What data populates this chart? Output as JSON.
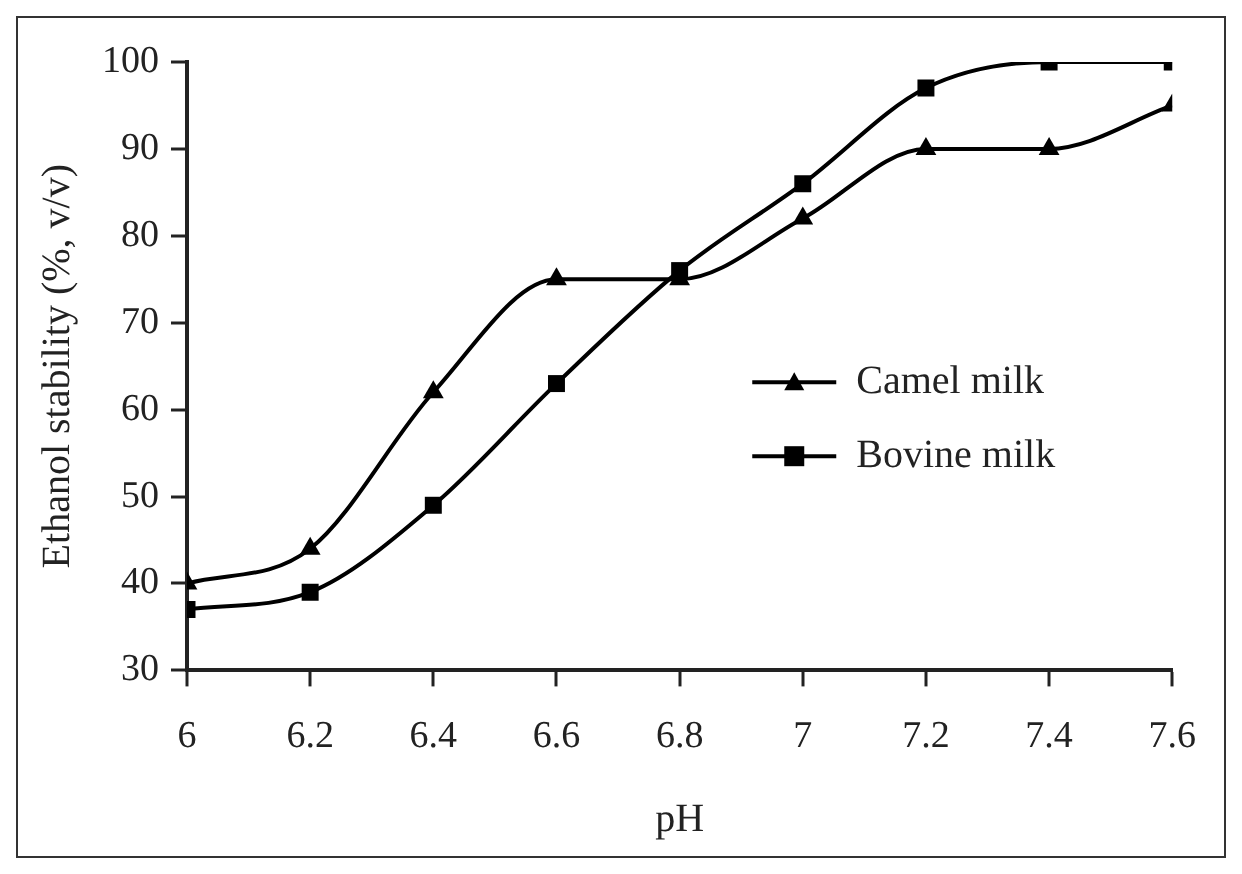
{
  "chart_data": {
    "type": "line",
    "xlabel": "pH",
    "ylabel": "Ethanol stability (%, v/v)",
    "x": [
      6,
      6.2,
      6.4,
      6.6,
      6.8,
      7,
      7.2,
      7.4,
      7.6
    ],
    "series": [
      {
        "name": "Camel milk",
        "color": "#000000",
        "marker": "triangle",
        "values": [
          40,
          44,
          62,
          75,
          75,
          82,
          90,
          90,
          95
        ]
      },
      {
        "name": "Bovine milk",
        "color": "#000000",
        "marker": "square",
        "values": [
          37,
          39,
          49,
          63,
          76,
          86,
          97,
          100,
          100
        ]
      }
    ],
    "xlim": [
      6,
      7.6
    ],
    "xticks": [
      6,
      6.2,
      6.4,
      6.6,
      6.8,
      7,
      7.2,
      7.4,
      7.6
    ],
    "ylim": [
      30,
      100
    ],
    "yticks": [
      30,
      40,
      50,
      60,
      70,
      80,
      90,
      100
    ],
    "grid": false,
    "legend": "right",
    "line_style": "solid"
  }
}
